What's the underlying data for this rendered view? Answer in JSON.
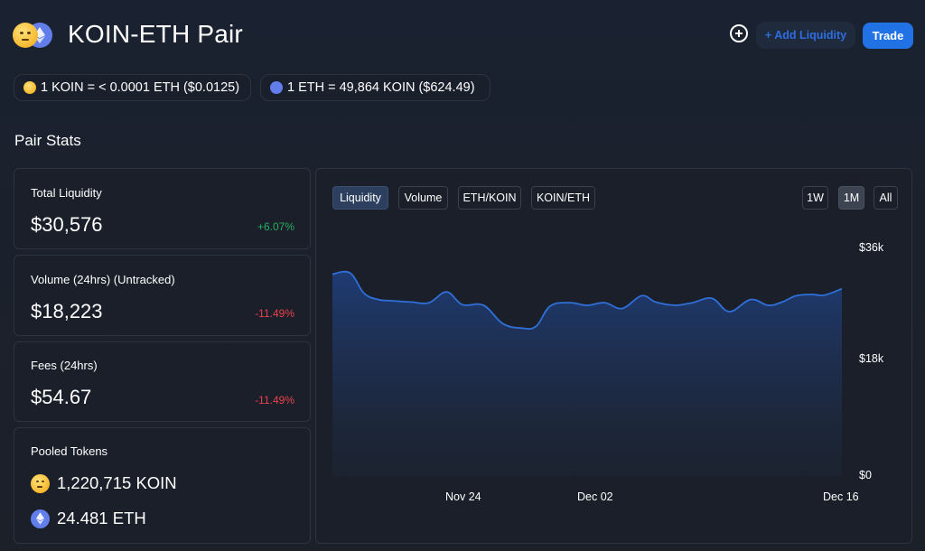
{
  "header": {
    "title": "KOIN-ETH Pair",
    "add_liquidity_label": "+ Add Liquidity",
    "trade_label": "Trade"
  },
  "rates": [
    {
      "text": "1 KOIN = < 0.0001 ETH ($0.0125)",
      "icon": "koin-token-icon"
    },
    {
      "text": "1 ETH = 49,864 KOIN ($624.49)",
      "icon": "eth-token-icon"
    }
  ],
  "section_title": "Pair Stats",
  "stats": {
    "total_liquidity": {
      "label": "Total Liquidity",
      "value": "$30,576",
      "change": "+6.07%"
    },
    "volume": {
      "label": "Volume (24hrs) (Untracked)",
      "value": "$18,223",
      "change": "-11.49%"
    },
    "fees": {
      "label": "Fees (24hrs)",
      "value": "$54.67",
      "change": "-11.49%"
    },
    "pooled": {
      "label": "Pooled Tokens",
      "koin": "1,220,715 KOIN",
      "eth": "24.481 ETH"
    }
  },
  "chart_tabs": [
    "Liquidity",
    "Volume",
    "ETH/KOIN",
    "KOIN/ETH"
  ],
  "chart_ranges": [
    "1W",
    "1M",
    "All"
  ],
  "colors": {
    "accent": "#2172e5",
    "line": "#2f6fd8",
    "positive": "#27ae60",
    "negative": "#e8424c"
  },
  "chart_data": {
    "type": "area",
    "title": "",
    "xlabel": "",
    "ylabel": "",
    "active_tab": "Liquidity",
    "active_range": "1M",
    "x_tick_labels": [
      "Nov 24",
      "Dec 02",
      "Dec 16"
    ],
    "y_tick_labels": [
      "$36k",
      "$18k",
      "$0"
    ],
    "y_tick_values": [
      36000,
      18000,
      0
    ],
    "ylim": [
      0,
      36000
    ],
    "grid": false,
    "x_days": [
      0,
      1,
      1.8,
      2.6,
      3.4,
      4.5,
      5.5,
      6.5,
      7.4,
      8.6,
      9.7,
      10.8,
      11.6,
      12.4,
      13.5,
      14.5,
      15.5,
      16.5,
      17.6,
      18.4,
      19.5,
      20.5,
      21.6,
      22.6,
      23.8,
      24.8,
      25.6,
      26.4,
      27.3,
      28,
      29
    ],
    "x_tick_days": [
      8.6,
      15.8,
      28
    ],
    "values": [
      31800,
      32000,
      28800,
      27800,
      27600,
      27400,
      27300,
      29000,
      27000,
      26900,
      24000,
      23300,
      23600,
      26800,
      27300,
      26900,
      27300,
      26400,
      28400,
      27400,
      26900,
      27300,
      28000,
      25900,
      27800,
      26900,
      27400,
      28400,
      28600,
      28500,
      29500
    ]
  }
}
